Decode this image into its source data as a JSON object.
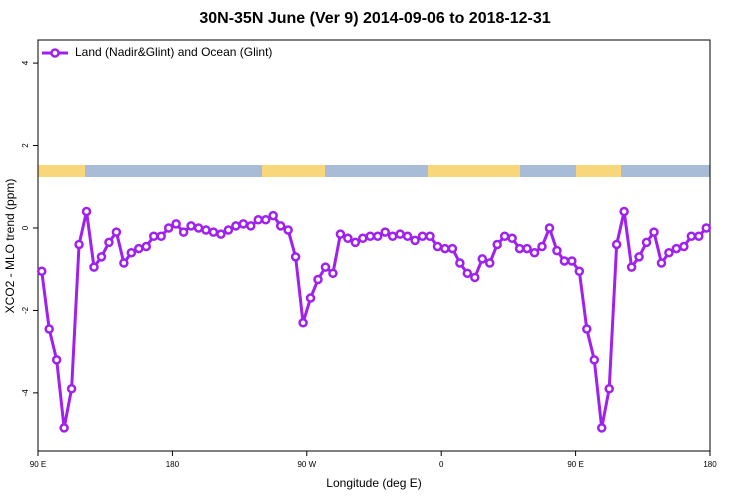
{
  "chart_data": {
    "type": "line",
    "title": "30N-35N June (Ver 9)   2014-09-06 to 2018-12-31",
    "xlabel": "Longitude (deg E)",
    "ylabel": "XCO2 - MLO trend (ppm)",
    "x": [
      92.5,
      97.5,
      102.5,
      107.5,
      112.5,
      117.5,
      122.5,
      127.5,
      132.5,
      137.5,
      142.5,
      147.5,
      152.5,
      157.5,
      162.5,
      167.5,
      172.5,
      177.5,
      182.5,
      187.5,
      192.5,
      197.5,
      202.5,
      207.5,
      212.5,
      217.5,
      222.5,
      227.5,
      232.5,
      237.5,
      242.5,
      247.5,
      252.5,
      257.5,
      262.5,
      267.5,
      272.5,
      277.5,
      282.5,
      287.5,
      292.5,
      297.5,
      302.5,
      307.5,
      312.5,
      317.5,
      322.5,
      327.5,
      332.5,
      337.5,
      342.5,
      347.5,
      352.5,
      357.5,
      362.5,
      367.5,
      372.5,
      377.5,
      382.5,
      387.5,
      392.5,
      397.5,
      402.5,
      407.5,
      412.5,
      417.5,
      422.5,
      427.5,
      432.5,
      437.5,
      442.5,
      447.5,
      452.5,
      457.5,
      462.5,
      467.5,
      472.5,
      477.5,
      482.5,
      487.5,
      492.5,
      497.5,
      502.5,
      507.5,
      512.5,
      517.5,
      522.5,
      527.5,
      532.5,
      537.5
    ],
    "series": [
      {
        "name": "Land (Nadir&Glint) and Ocean (Glint)",
        "color": "#a020f0",
        "values": [
          -1.05,
          -2.45,
          -3.2,
          -4.85,
          -3.9,
          -0.4,
          0.4,
          -0.95,
          -0.7,
          -0.35,
          -0.1,
          -0.85,
          -0.6,
          -0.5,
          -0.45,
          -0.2,
          -0.2,
          0.0,
          0.1,
          -0.1,
          0.05,
          0.0,
          -0.05,
          -0.1,
          -0.15,
          -0.05,
          0.05,
          0.1,
          0.05,
          0.2,
          0.2,
          0.3,
          0.05,
          -0.05,
          -0.7,
          -2.3,
          -1.7,
          -1.25,
          -0.95,
          -1.1,
          -0.15,
          -0.25,
          -0.35,
          -0.25,
          -0.2,
          -0.2,
          -0.1,
          -0.2,
          -0.15,
          -0.2,
          -0.3,
          -0.2,
          -0.2,
          -0.45,
          -0.5,
          -0.5,
          -0.85,
          -1.1,
          -1.2,
          -0.75,
          -0.85,
          -0.4,
          -0.2,
          -0.25,
          -0.5,
          -0.5,
          -0.6,
          -0.45,
          0.0,
          -0.55,
          -0.8,
          -0.8,
          -1.05,
          -2.45,
          -3.2,
          -4.85,
          -3.9,
          -0.4,
          0.4,
          -0.95,
          -0.7,
          -0.35,
          -0.1,
          -0.85,
          -0.6,
          -0.5,
          -0.45,
          -0.2,
          -0.2,
          0.0
        ]
      }
    ],
    "xlim": [
      90,
      540
    ],
    "xticks": [
      {
        "value": 90,
        "label": "90 E"
      },
      {
        "value": 180,
        "label": "180"
      },
      {
        "value": 270,
        "label": "90 W"
      },
      {
        "value": 360,
        "label": "0"
      },
      {
        "value": 450,
        "label": "90 E"
      },
      {
        "value": 540,
        "label": "180"
      }
    ],
    "ylim": [
      -5.41,
      4.56
    ],
    "yticks": [
      -4,
      -2,
      0,
      2,
      4
    ],
    "legend": "topleft"
  }
}
